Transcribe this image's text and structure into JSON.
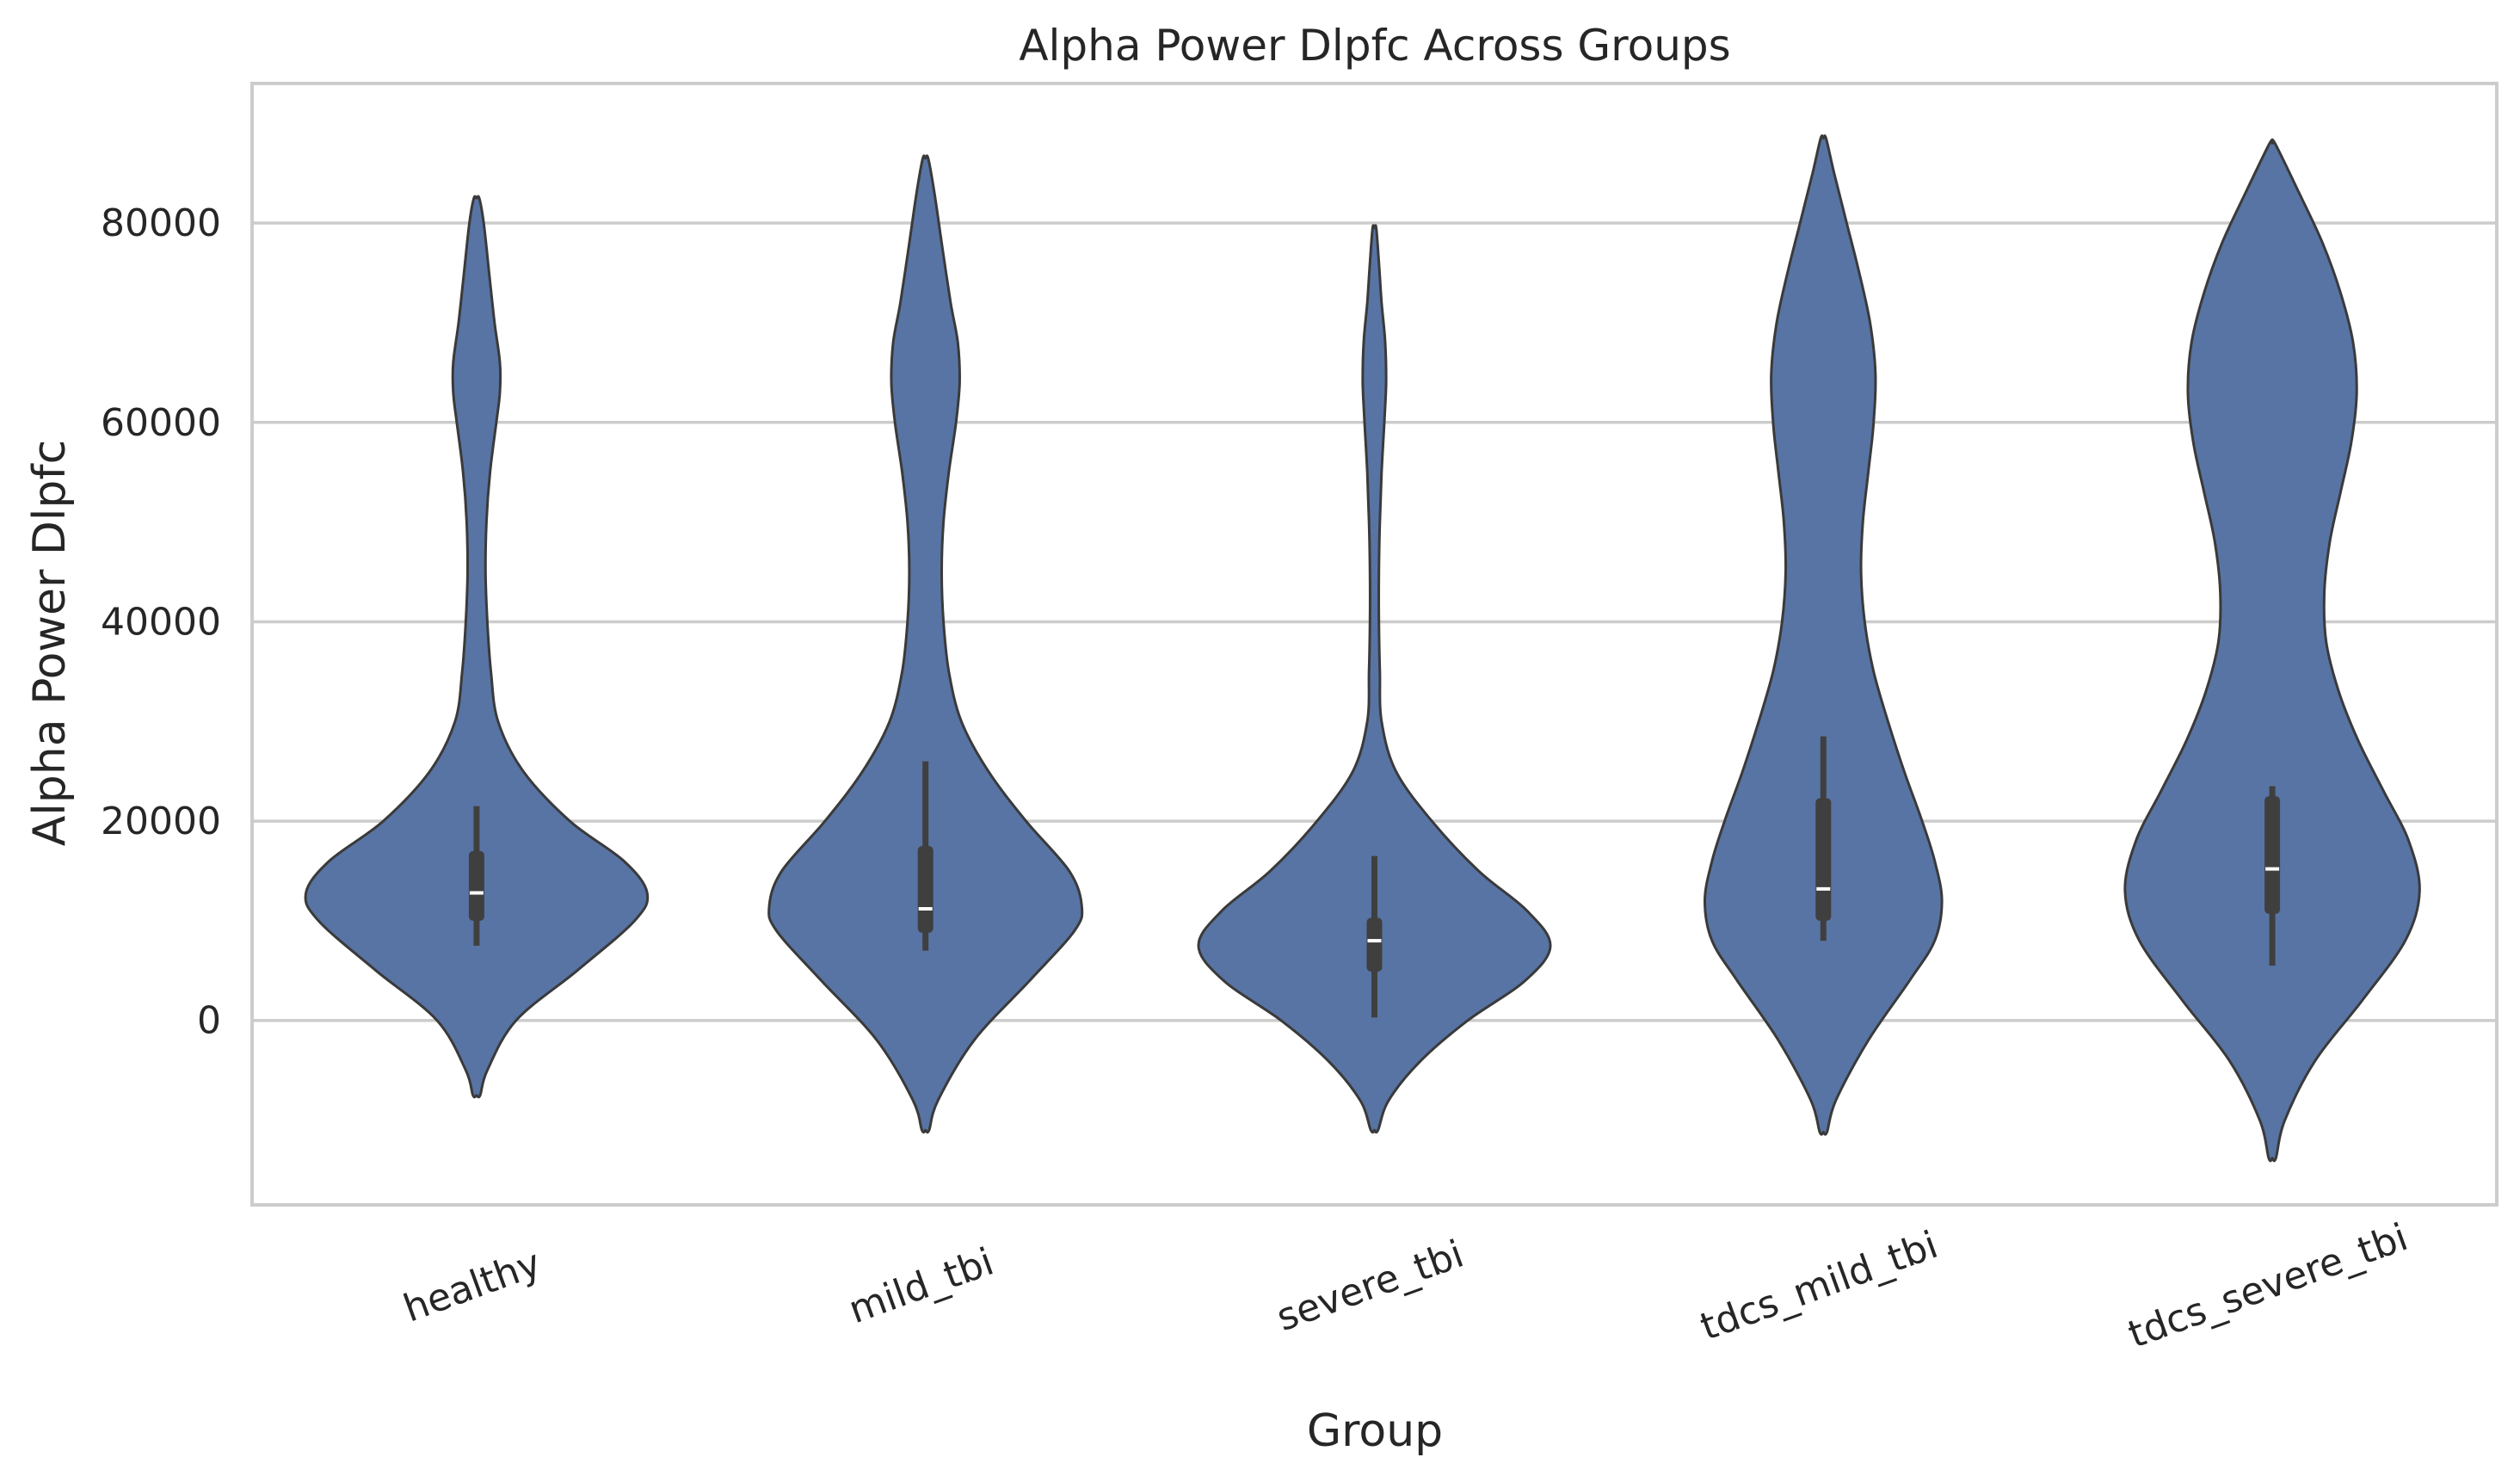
{
  "chart_data": {
    "type": "violin",
    "title": "Alpha Power Dlpfc Across Groups",
    "xlabel": "Group",
    "ylabel": "Alpha Power Dlpfc",
    "ylim": [
      -18500,
      94000
    ],
    "yticks": [
      0,
      20000,
      40000,
      60000,
      80000
    ],
    "ytick_labels": [
      "0",
      "20000",
      "40000",
      "60000",
      "80000"
    ],
    "grid": "horizontal",
    "color": "#5874A4",
    "edge_color": "#3A3A3A",
    "inner_box_color": "#3F3F3F",
    "median_color": "#FFFFFF",
    "categories": [
      "healthy",
      "mild_tbi",
      "severe_tbi",
      "tdcs_mild_tbi",
      "tdcs_severe_tbi"
    ],
    "series": [
      {
        "category": "healthy",
        "min": 7500,
        "q1": 10000,
        "median": 12800,
        "q3": 17000,
        "max": 21500,
        "kde_lo": -7500,
        "kde_hi": 82500,
        "density": [
          [
            -7500,
            0.02
          ],
          [
            -5000,
            0.06
          ],
          [
            0,
            0.22
          ],
          [
            5000,
            0.56
          ],
          [
            10000,
            0.88
          ],
          [
            12800,
            0.95
          ],
          [
            16000,
            0.82
          ],
          [
            20000,
            0.52
          ],
          [
            25000,
            0.26
          ],
          [
            30000,
            0.12
          ],
          [
            35000,
            0.08
          ],
          [
            40000,
            0.06
          ],
          [
            45000,
            0.05
          ],
          [
            50000,
            0.055
          ],
          [
            55000,
            0.075
          ],
          [
            60000,
            0.11
          ],
          [
            63000,
            0.13
          ],
          [
            66000,
            0.13
          ],
          [
            70000,
            0.1
          ],
          [
            75000,
            0.07
          ],
          [
            80000,
            0.04
          ],
          [
            82500,
            0.015
          ]
        ]
      },
      {
        "category": "mild_tbi",
        "min": 7000,
        "q1": 8800,
        "median": 11200,
        "q3": 17500,
        "max": 26000,
        "kde_lo": -11000,
        "kde_hi": 86500,
        "density": [
          [
            -11000,
            0.02
          ],
          [
            -8000,
            0.07
          ],
          [
            -2000,
            0.27
          ],
          [
            4000,
            0.58
          ],
          [
            9000,
            0.83
          ],
          [
            11500,
            0.87
          ],
          [
            15000,
            0.8
          ],
          [
            20000,
            0.56
          ],
          [
            25000,
            0.35
          ],
          [
            30000,
            0.2
          ],
          [
            35000,
            0.13
          ],
          [
            40000,
            0.1
          ],
          [
            45000,
            0.09
          ],
          [
            50000,
            0.1
          ],
          [
            55000,
            0.13
          ],
          [
            60000,
            0.17
          ],
          [
            64000,
            0.19
          ],
          [
            68000,
            0.18
          ],
          [
            72000,
            0.14
          ],
          [
            78000,
            0.09
          ],
          [
            83000,
            0.05
          ],
          [
            86500,
            0.015
          ]
        ]
      },
      {
        "category": "severe_tbi",
        "min": 300,
        "q1": 4900,
        "median": 8000,
        "q3": 10300,
        "max": 16500,
        "kde_lo": -11000,
        "kde_hi": 79500,
        "density": [
          [
            -11000,
            0.02
          ],
          [
            -8000,
            0.08
          ],
          [
            -4000,
            0.26
          ],
          [
            0,
            0.52
          ],
          [
            4000,
            0.84
          ],
          [
            7500,
            0.98
          ],
          [
            11000,
            0.85
          ],
          [
            15000,
            0.58
          ],
          [
            20000,
            0.32
          ],
          [
            25000,
            0.12
          ],
          [
            30000,
            0.04
          ],
          [
            35000,
            0.03
          ],
          [
            40000,
            0.025
          ],
          [
            45000,
            0.025
          ],
          [
            50000,
            0.03
          ],
          [
            55000,
            0.04
          ],
          [
            60000,
            0.055
          ],
          [
            64000,
            0.065
          ],
          [
            68000,
            0.06
          ],
          [
            72000,
            0.04
          ],
          [
            76000,
            0.025
          ],
          [
            79500,
            0.01
          ]
        ]
      },
      {
        "category": "tdcs_mild_tbi",
        "min": 8000,
        "q1": 10000,
        "median": 13200,
        "q3": 22300,
        "max": 28500,
        "kde_lo": -11200,
        "kde_hi": 88500,
        "density": [
          [
            -11200,
            0.02
          ],
          [
            -8000,
            0.07
          ],
          [
            -2000,
            0.25
          ],
          [
            4000,
            0.48
          ],
          [
            8000,
            0.62
          ],
          [
            12000,
            0.66
          ],
          [
            16000,
            0.62
          ],
          [
            20000,
            0.55
          ],
          [
            25000,
            0.45
          ],
          [
            30000,
            0.36
          ],
          [
            35000,
            0.28
          ],
          [
            40000,
            0.23
          ],
          [
            45000,
            0.21
          ],
          [
            50000,
            0.22
          ],
          [
            55000,
            0.25
          ],
          [
            60000,
            0.28
          ],
          [
            65000,
            0.29
          ],
          [
            70000,
            0.26
          ],
          [
            75000,
            0.2
          ],
          [
            80000,
            0.13
          ],
          [
            85000,
            0.06
          ],
          [
            88500,
            0.015
          ]
        ]
      },
      {
        "category": "tdcs_severe_tbi",
        "min": 5500,
        "q1": 10700,
        "median": 15200,
        "q3": 22500,
        "max": 23500,
        "kde_lo": -13800,
        "kde_hi": 88000,
        "density": [
          [
            -13800,
            0.02
          ],
          [
            -10000,
            0.07
          ],
          [
            -4000,
            0.24
          ],
          [
            2000,
            0.5
          ],
          [
            8000,
            0.74
          ],
          [
            13000,
            0.82
          ],
          [
            18000,
            0.76
          ],
          [
            23000,
            0.62
          ],
          [
            28000,
            0.48
          ],
          [
            33000,
            0.37
          ],
          [
            38000,
            0.3
          ],
          [
            43000,
            0.29
          ],
          [
            48000,
            0.32
          ],
          [
            53000,
            0.38
          ],
          [
            58000,
            0.44
          ],
          [
            63000,
            0.47
          ],
          [
            68000,
            0.45
          ],
          [
            73000,
            0.38
          ],
          [
            78000,
            0.28
          ],
          [
            83000,
            0.15
          ],
          [
            88000,
            0.015
          ]
        ]
      }
    ]
  }
}
